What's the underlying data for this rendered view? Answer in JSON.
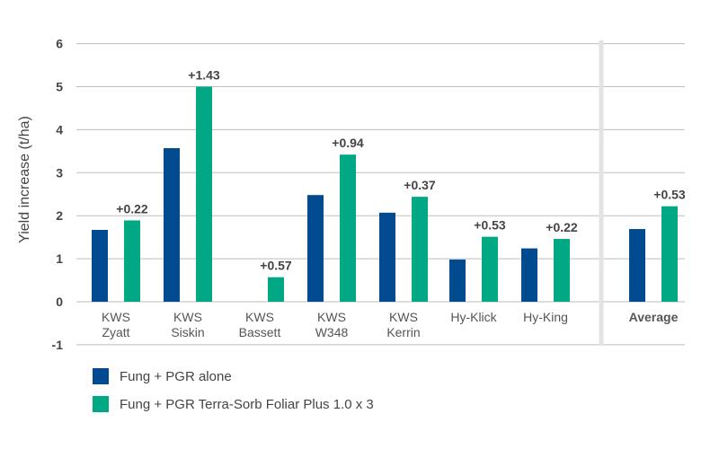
{
  "chart_data": {
    "type": "bar",
    "ylabel": "Yield increase (t/ha)",
    "ylim": [
      -1,
      6
    ],
    "yticks": [
      "-1",
      "0",
      "1",
      "2",
      "3",
      "4",
      "5",
      "6"
    ],
    "grid": true,
    "legend_placement": "bottom-left",
    "categories": [
      [
        "KWS",
        "Zyatt"
      ],
      [
        "KWS",
        "Siskin"
      ],
      [
        "KWS",
        "Bassett"
      ],
      [
        "KWS",
        "W348"
      ],
      [
        "KWS",
        "Kerrin"
      ],
      [
        "Hy-Klick"
      ],
      [
        "Hy-King"
      ],
      [
        "Average"
      ]
    ],
    "series": [
      {
        "name": "Fung + PGR alone",
        "color": "#004a8f",
        "values": [
          1.67,
          3.57,
          0,
          2.48,
          2.07,
          0.98,
          1.24,
          1.69
        ]
      },
      {
        "name": "Fung + PGR Terra-Sorb Foliar Plus 1.0 x 3",
        "color": "#00a984",
        "values": [
          1.89,
          5.0,
          0.57,
          3.42,
          2.44,
          1.51,
          1.46,
          2.22
        ]
      }
    ],
    "data_labels": [
      "+0.22",
      "+1.43",
      "+0.57",
      "+0.94",
      "+0.37",
      "+0.53",
      "+0.22",
      "+0.53"
    ]
  }
}
